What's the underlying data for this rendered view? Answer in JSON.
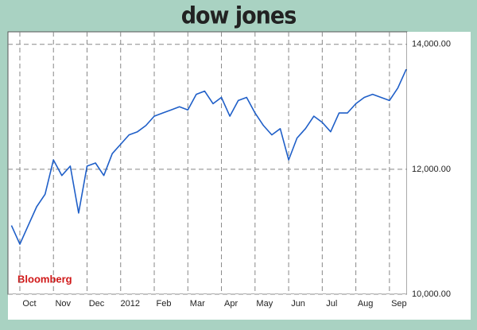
{
  "chart_data": {
    "type": "line",
    "title": "dow jones",
    "source": "Bloomberg",
    "x": [
      null,
      "Oct",
      null,
      null,
      null,
      "Nov",
      null,
      null,
      null,
      "Dec",
      null,
      null,
      null,
      "2012",
      null,
      null,
      null,
      "Feb",
      null,
      null,
      null,
      "Mar",
      null,
      null,
      null,
      "Apr",
      null,
      null,
      null,
      "May",
      null,
      null,
      null,
      "Jun",
      null,
      null,
      null,
      "Jul",
      null,
      null,
      null,
      "Aug",
      null,
      null,
      null,
      "Sep",
      null,
      null
    ],
    "series": [
      {
        "color": "#1f5fc8",
        "values": [
          11100,
          10800,
          11100,
          11400,
          11600,
          12150,
          11900,
          12050,
          11300,
          12050,
          12100,
          11900,
          12250,
          12400,
          12550,
          12600,
          12700,
          12850,
          12900,
          12950,
          13000,
          12950,
          13200,
          13250,
          13050,
          13150,
          12850,
          13100,
          13150,
          12900,
          12700,
          12550,
          12650,
          12150,
          12500,
          12650,
          12850,
          12750,
          12600,
          12900,
          12900,
          13050,
          13150,
          13200,
          13150,
          13100,
          13300,
          13600
        ]
      }
    ],
    "ylim": [
      10000,
      14200
    ],
    "yticks": [
      {
        "value": 10000,
        "label": "10,000.00"
      },
      {
        "value": 12000,
        "label": "12,000.00"
      },
      {
        "value": 14000,
        "label": "14,000.00"
      }
    ],
    "grid": true
  }
}
